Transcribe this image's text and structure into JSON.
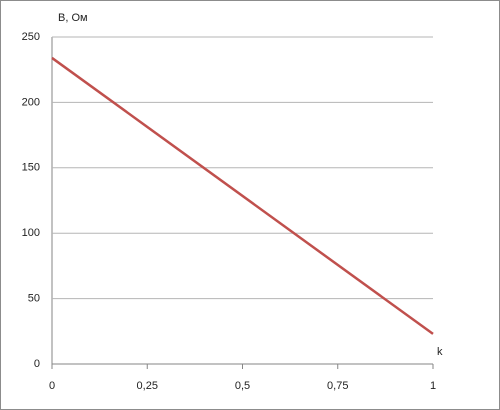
{
  "chart_data": {
    "type": "line",
    "y_label": "B, Ом",
    "x_label": "k",
    "x": [
      0,
      1
    ],
    "values": [
      234,
      23
    ],
    "color": "#c0504d",
    "xlim": [
      0,
      1
    ],
    "xticks": [
      0,
      {
        "value": 0.25,
        "label": "0,25"
      },
      {
        "value": 0.5,
        "label": "0,5"
      },
      {
        "value": 0.75,
        "label": "0,75"
      },
      1
    ],
    "ylim": [
      0,
      250
    ],
    "yticks": [
      0,
      50,
      100,
      150,
      200,
      250
    ],
    "grid": true
  }
}
